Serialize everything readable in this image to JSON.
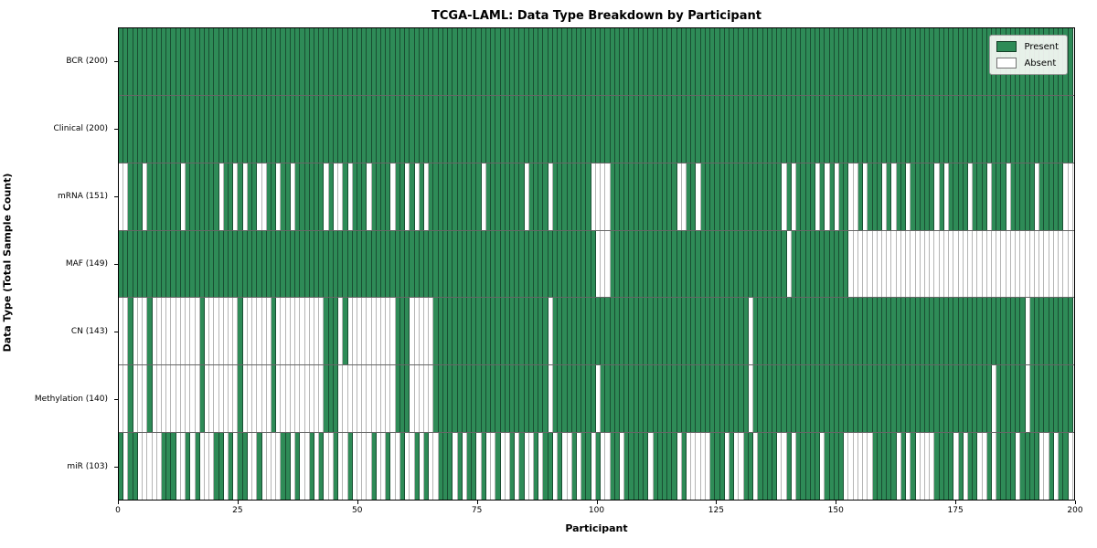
{
  "title": "TCGA-LAML: Data Type Breakdown by Participant",
  "x_axis": {
    "label": "Participant",
    "ticks": [
      0,
      25,
      50,
      75,
      100,
      125,
      150,
      175,
      200
    ],
    "range": [
      0,
      200
    ]
  },
  "y_axis": {
    "label": "Data Type (Total Sample Count)"
  },
  "legend": {
    "present_label": "Present",
    "absent_label": "Absent"
  },
  "colors": {
    "present": "#2e8b57",
    "absent": "#ffffff",
    "plot_border": "#000000"
  },
  "chart_data": {
    "type": "heatmap",
    "n_participants": 200,
    "cell_states": [
      "Present",
      "Absent"
    ],
    "rows": [
      {
        "label": "BCR (200)",
        "name": "BCR",
        "total_present": 200,
        "absent_indices": []
      },
      {
        "label": "Clinical (200)",
        "name": "Clinical",
        "total_present": 200,
        "absent_indices": []
      },
      {
        "label": "mRNA (151)",
        "name": "mRNA",
        "total_present": 151,
        "absent_indices": [
          0,
          1,
          5,
          13,
          21,
          24,
          26,
          29,
          30,
          33,
          36,
          43,
          45,
          46,
          48,
          52,
          57,
          60,
          62,
          64,
          76,
          85,
          90,
          99,
          100,
          101,
          102,
          117,
          118,
          121,
          139,
          141,
          146,
          148,
          150,
          153,
          154,
          156,
          160,
          162,
          165,
          171,
          173,
          178,
          182,
          186,
          192,
          198,
          199
        ]
      },
      {
        "label": "MAF (149)",
        "name": "MAF",
        "total_present": 149,
        "absent_indices": [
          100,
          101,
          102,
          140,
          153,
          154,
          155,
          156,
          157,
          158,
          159,
          160,
          161,
          162,
          163,
          164,
          165,
          166,
          167,
          168,
          169,
          170,
          171,
          172,
          173,
          174,
          175,
          176,
          177,
          178,
          179,
          180,
          181,
          182,
          183,
          184,
          185,
          186,
          187,
          188,
          189,
          190,
          191,
          192,
          193,
          194,
          195,
          196,
          197,
          198,
          199
        ]
      },
      {
        "label": "CN (143)",
        "name": "CN",
        "total_present": 143,
        "absent_indices": [
          0,
          1,
          3,
          4,
          5,
          7,
          8,
          9,
          10,
          11,
          12,
          13,
          14,
          15,
          16,
          18,
          19,
          20,
          21,
          22,
          23,
          24,
          26,
          27,
          28,
          29,
          30,
          31,
          33,
          34,
          35,
          36,
          37,
          38,
          39,
          40,
          41,
          42,
          46,
          48,
          49,
          50,
          51,
          52,
          53,
          54,
          55,
          56,
          57,
          61,
          62,
          63,
          64,
          65,
          90,
          132,
          190
        ]
      },
      {
        "label": "Methylation (140)",
        "name": "Methylation",
        "total_present": 140,
        "absent_indices": [
          0,
          1,
          3,
          4,
          5,
          7,
          8,
          9,
          10,
          11,
          12,
          13,
          14,
          15,
          16,
          18,
          19,
          20,
          21,
          22,
          23,
          24,
          26,
          27,
          28,
          29,
          30,
          31,
          33,
          34,
          35,
          36,
          37,
          38,
          39,
          40,
          41,
          42,
          46,
          47,
          48,
          49,
          50,
          51,
          52,
          53,
          54,
          55,
          56,
          57,
          61,
          62,
          63,
          64,
          65,
          90,
          100,
          132,
          183,
          190
        ]
      },
      {
        "label": "miR (103)",
        "name": "miR",
        "total_present": 103,
        "absent_indices": [
          1,
          4,
          5,
          6,
          7,
          8,
          12,
          13,
          15,
          17,
          18,
          19,
          22,
          24,
          27,
          28,
          30,
          31,
          32,
          33,
          36,
          38,
          39,
          41,
          43,
          44,
          46,
          47,
          49,
          50,
          51,
          52,
          54,
          55,
          57,
          58,
          60,
          61,
          63,
          65,
          66,
          70,
          72,
          75,
          77,
          78,
          80,
          81,
          83,
          85,
          86,
          88,
          91,
          93,
          94,
          96,
          99,
          101,
          102,
          105,
          111,
          117,
          119,
          120,
          121,
          122,
          123,
          127,
          129,
          130,
          133,
          138,
          139,
          141,
          147,
          152,
          153,
          154,
          155,
          156,
          157,
          163,
          165,
          167,
          168,
          169,
          170,
          175,
          177,
          180,
          181,
          183,
          188,
          193,
          194,
          196,
          199
        ]
      }
    ]
  }
}
